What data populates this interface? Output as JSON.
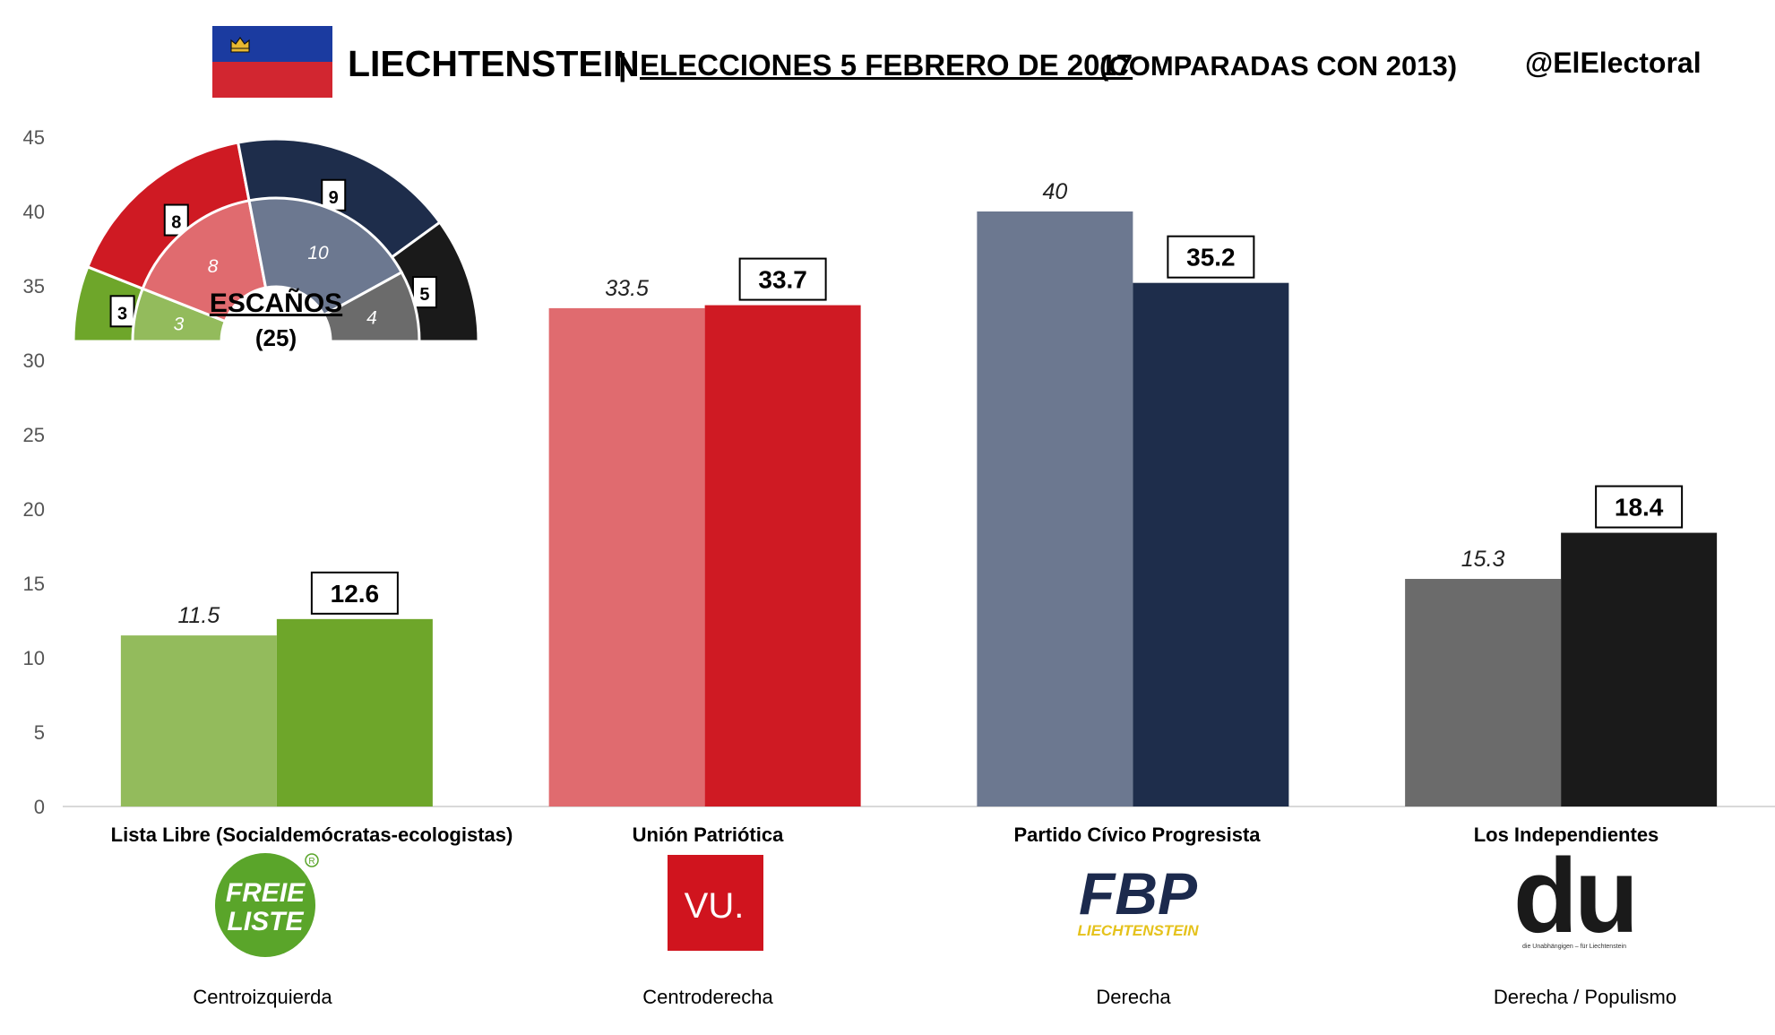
{
  "header": {
    "country": "LIECHTENSTEIN",
    "separator": "|",
    "title": "ELECCIONES 5 FEBRERO DE 2017",
    "comparison": "(COMPARADAS CON 2013)",
    "handle": "@ElElectoral"
  },
  "colors": {
    "flag_blue": "#1b3ba0",
    "flag_red": "#d22630",
    "crown_gold": "#e8b830"
  },
  "chart_data": {
    "type": "bar",
    "ylim": [
      0,
      45
    ],
    "yticks": [
      0,
      5,
      10,
      15,
      20,
      25,
      30,
      35,
      40,
      45
    ],
    "grid": false,
    "categories": [
      "Lista Libre (Socialdemócratas-ecologistas)",
      "Unión Patriótica",
      "Partido Cívico Progresista",
      "Los Independientes"
    ],
    "series": [
      {
        "values": [
          11.5,
          33.5,
          40,
          15.3
        ],
        "colors": [
          "#93bb5c",
          "#e06b6f",
          "#6c7890",
          "#6b6b6b"
        ],
        "labels": [
          "11.5",
          "33.5",
          "40",
          "15.3"
        ],
        "label_style": "italic"
      },
      {
        "values": [
          12.6,
          33.7,
          35.2,
          18.4
        ],
        "colors": [
          "#6ea62a",
          "#cf1a23",
          "#1e2d4b",
          "#1a1a1a"
        ],
        "labels": [
          "12.6",
          "33.7",
          "35.2",
          "18.4"
        ],
        "label_style": "boxed-bold"
      }
    ],
    "ideology": [
      "Centroizquierda",
      "Centroderecha",
      "Derecha",
      "Derecha / Populismo"
    ],
    "seats": {
      "title": "ESCAÑOS",
      "total_label": "(25)",
      "total": 25,
      "outer": [
        {
          "value": 3,
          "label": "3",
          "color": "#6ea62a"
        },
        {
          "value": 8,
          "label": "8",
          "color": "#cf1a23"
        },
        {
          "value": 9,
          "label": "9",
          "color": "#1e2d4b"
        },
        {
          "value": 5,
          "label": "5",
          "color": "#1a1a1a"
        }
      ],
      "inner": [
        {
          "value": 3,
          "label": "3",
          "color": "#93bb5c"
        },
        {
          "value": 8,
          "label": "8",
          "color": "#e06b6f"
        },
        {
          "value": 10,
          "label": "10",
          "color": "#6c7890"
        },
        {
          "value": 4,
          "label": "4",
          "color": "#6b6b6b"
        }
      ]
    }
  },
  "logos": {
    "freie_liste": {
      "line1": "FREIE",
      "line2": "LISTE",
      "mark": "R",
      "color": "#5aa52a"
    },
    "vu": {
      "text": "VU.",
      "bg": "#d0141e"
    },
    "fbp": {
      "text": "FBP",
      "sub": "LIECHTENSTEIN",
      "color": "#1c2a4d",
      "sub_color": "#e5c21b"
    },
    "du": {
      "text": "du",
      "tagline": "die Unabhängigen – für Liechtenstein"
    }
  }
}
